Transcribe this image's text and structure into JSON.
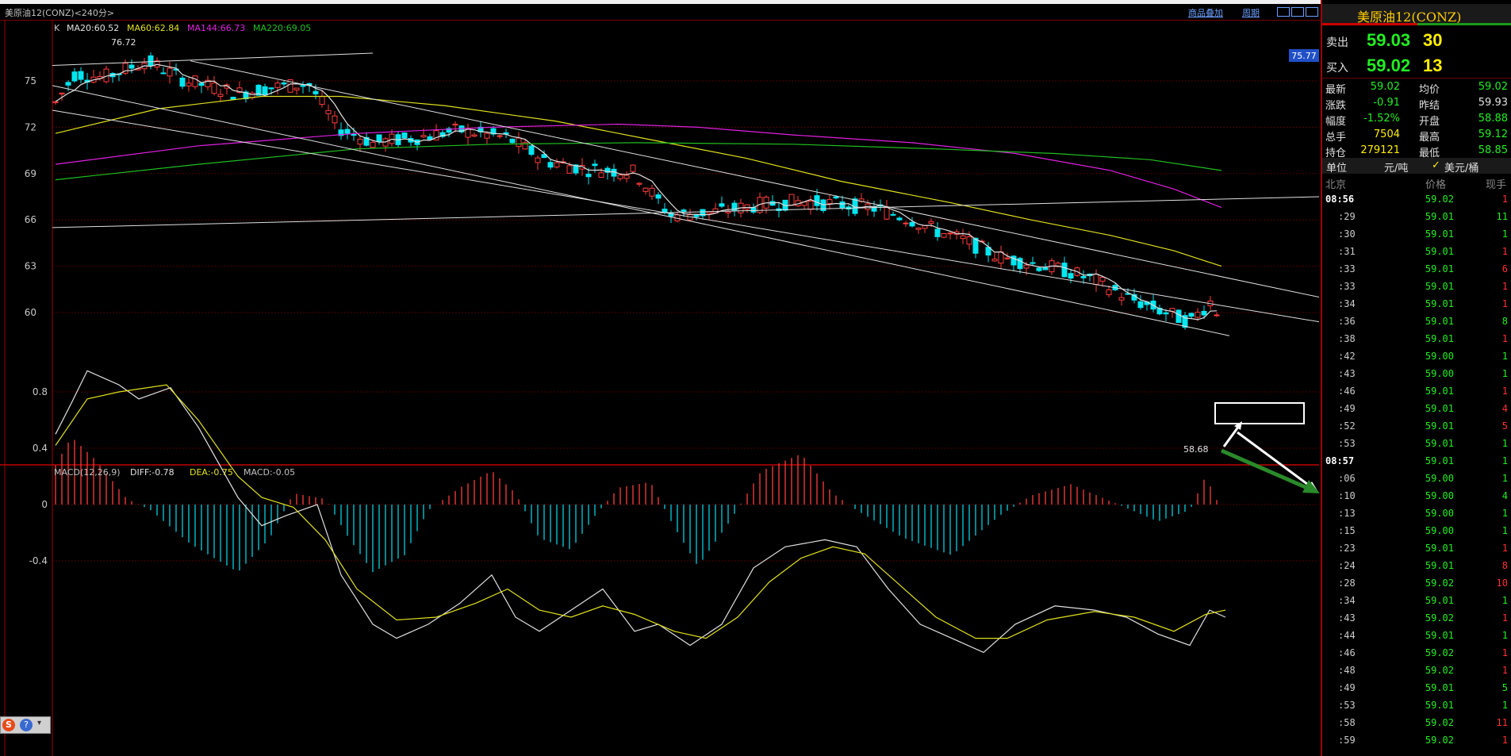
{
  "window": {
    "title": "美原油12(CONZ)<240分>",
    "links": [
      "商品叠加",
      "周期"
    ]
  },
  "main_chart": {
    "legend_prefix": "K",
    "ma_legend": [
      {
        "label": "MA20:60.52",
        "color": "#e0e0e0"
      },
      {
        "label": "MA60:62.84",
        "color": "#e0e020"
      },
      {
        "label": "MA144:66.73",
        "color": "#e020e0"
      },
      {
        "label": "MA220:69.05",
        "color": "#20c020"
      }
    ],
    "y_ticks": [
      "75",
      "72",
      "69",
      "66",
      "63",
      "60"
    ],
    "high_label": "76.72",
    "low_label": "58.68",
    "cursor_price": "75.77"
  },
  "macd_chart": {
    "legend": [
      {
        "label": "MACD(12,26,9)",
        "color": "#c0c0c0"
      },
      {
        "label": "DIFF:-0.78",
        "color": "#e0e0e0"
      },
      {
        "label": "DEA:-0.75",
        "color": "#e0e020"
      },
      {
        "label": "MACD:-0.05",
        "color": "#c0c0c0"
      }
    ],
    "y_ticks": [
      "0.8",
      "0.4",
      "0",
      "-0.4"
    ]
  },
  "quote": {
    "name": "美原油12(CONZ)",
    "sell": {
      "label": "卖出",
      "price": "59.03",
      "vol": "30"
    },
    "buy": {
      "label": "买入",
      "price": "59.02",
      "vol": "13"
    },
    "stats": [
      {
        "l1": "最新",
        "v1": "59.02",
        "c1": "g",
        "l2": "均价",
        "v2": "59.02",
        "c2": "g"
      },
      {
        "l1": "涨跌",
        "v1": "-0.91",
        "c1": "g",
        "l2": "昨结",
        "v2": "59.93",
        "c2": "w"
      },
      {
        "l1": "幅度",
        "v1": "-1.52%",
        "c1": "g",
        "l2": "开盘",
        "v2": "58.88",
        "c2": "g"
      },
      {
        "l1": "总手",
        "v1": "7504",
        "c1": "y",
        "l2": "最高",
        "v2": "59.12",
        "c2": "g"
      },
      {
        "l1": "持仓",
        "v1": "279121",
        "c1": "y",
        "l2": "最低",
        "v2": "58.85",
        "c2": "g"
      }
    ],
    "unit": {
      "label": "单位",
      "cny": "元/吨",
      "usd": "美元/桶"
    },
    "tick_header": {
      "time": "北京",
      "price": "价格",
      "vol": "现手"
    },
    "ticks": [
      {
        "t": "08:56",
        "hour": true,
        "p": "59.02",
        "v": "1",
        "c": "r"
      },
      {
        "t": ":29",
        "p": "59.01",
        "v": "11",
        "c": "g"
      },
      {
        "t": ":30",
        "p": "59.01",
        "v": "1",
        "c": "g"
      },
      {
        "t": ":31",
        "p": "59.01",
        "v": "1",
        "c": "r"
      },
      {
        "t": ":33",
        "p": "59.01",
        "v": "6",
        "c": "r"
      },
      {
        "t": ":33",
        "p": "59.01",
        "v": "1",
        "c": "r"
      },
      {
        "t": ":34",
        "p": "59.01",
        "v": "1",
        "c": "r"
      },
      {
        "t": ":36",
        "p": "59.01",
        "v": "8",
        "c": "g"
      },
      {
        "t": ":38",
        "p": "59.01",
        "v": "1",
        "c": "r"
      },
      {
        "t": ":42",
        "p": "59.00",
        "v": "1",
        "c": "g"
      },
      {
        "t": ":43",
        "p": "59.00",
        "v": "1",
        "c": "g"
      },
      {
        "t": ":46",
        "p": "59.01",
        "v": "1",
        "c": "r"
      },
      {
        "t": ":49",
        "p": "59.01",
        "v": "4",
        "c": "r"
      },
      {
        "t": ":52",
        "p": "59.01",
        "v": "5",
        "c": "r"
      },
      {
        "t": ":53",
        "p": "59.01",
        "v": "1",
        "c": "g"
      },
      {
        "t": "08:57",
        "hour": true,
        "p": "59.01",
        "v": "1",
        "c": "g"
      },
      {
        "t": ":06",
        "p": "59.00",
        "v": "1",
        "c": "g"
      },
      {
        "t": ":10",
        "p": "59.00",
        "v": "4",
        "c": "g"
      },
      {
        "t": ":13",
        "p": "59.00",
        "v": "1",
        "c": "g"
      },
      {
        "t": ":15",
        "p": "59.00",
        "v": "1",
        "c": "g"
      },
      {
        "t": ":23",
        "p": "59.01",
        "v": "1",
        "c": "r"
      },
      {
        "t": ":24",
        "p": "59.01",
        "v": "8",
        "c": "r"
      },
      {
        "t": ":28",
        "p": "59.02",
        "v": "10",
        "c": "r"
      },
      {
        "t": ":34",
        "p": "59.01",
        "v": "1",
        "c": "g"
      },
      {
        "t": ":43",
        "p": "59.02",
        "v": "1",
        "c": "r"
      },
      {
        "t": ":44",
        "p": "59.01",
        "v": "1",
        "c": "g"
      },
      {
        "t": ":46",
        "p": "59.02",
        "v": "1",
        "c": "r"
      },
      {
        "t": ":48",
        "p": "59.02",
        "v": "1",
        "c": "r"
      },
      {
        "t": ":49",
        "p": "59.01",
        "v": "5",
        "c": "g"
      },
      {
        "t": ":53",
        "p": "59.01",
        "v": "1",
        "c": "g"
      },
      {
        "t": ":58",
        "p": "59.02",
        "v": "11",
        "c": "r"
      },
      {
        "t": ":59",
        "p": "59.02",
        "v": "1",
        "c": "r"
      }
    ]
  },
  "tray": {
    "ime": "S",
    "help": "?"
  }
}
